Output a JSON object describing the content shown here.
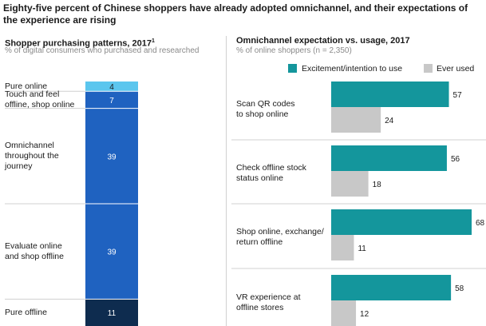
{
  "header": {
    "title": "Eighty-five percent of Chinese shoppers have already adopted omnichannel, and their expectations of the experience are rising"
  },
  "left_panel": {
    "title": "Shopper purchasing patterns, 2017",
    "title_sup": "1",
    "subtitle": "% of digital consumers who purchased and researched"
  },
  "right_panel": {
    "title": "Omnichannel expectation vs. usage, 2017",
    "subtitle": "% of online shoppers (n = 2,350)"
  },
  "colors": {
    "teal": "#14969c",
    "gray": "#c8c8c8",
    "light_blue": "#5bc6ee",
    "blue": "#1f62c0",
    "navy": "#0e2c4f"
  },
  "chart_data": [
    {
      "type": "bar",
      "stacked": true,
      "orientation": "vertical",
      "title": "Shopper purchasing patterns, 2017",
      "subtitle": "% of digital consumers who purchased and researched",
      "categories": [
        "Pure online",
        "Touch and feel offline, shop online",
        "Omnichannel throughout the journey",
        "Evaluate online and shop offline",
        "Pure offline"
      ],
      "labels": [
        "Pure online",
        "Touch and feel\noffline, shop online",
        "Omnichannel\nthroughout the\njourney",
        "Evaluate online\nand shop offline",
        "Pure offline"
      ],
      "values": [
        4,
        7,
        39,
        39,
        11
      ],
      "value_labels": [
        "4",
        "7",
        "39",
        "39",
        "11"
      ]
    },
    {
      "type": "bar",
      "orientation": "horizontal",
      "title": "Omnichannel expectation vs. usage, 2017",
      "subtitle": "% of online shoppers (n = 2,350)",
      "categories": [
        "Scan QR codes to shop online",
        "Check offline stock status online",
        "Shop online, exchange/ return offline",
        "VR experience at offline stores"
      ],
      "labels": [
        "Scan QR codes\nto shop online",
        "Check offline stock\nstatus online",
        "Shop online, exchange/\nreturn offline",
        "VR experience at\noffline stores"
      ],
      "series": [
        {
          "name": "Excitement/intention to use",
          "values": [
            57,
            56,
            68,
            58
          ],
          "value_labels": [
            "57",
            "56",
            "68",
            "58"
          ]
        },
        {
          "name": "Ever used",
          "values": [
            24,
            18,
            11,
            12
          ],
          "value_labels": [
            "24",
            "18",
            "11",
            "12"
          ]
        }
      ],
      "xlim": [
        0,
        70
      ],
      "legend": "top"
    }
  ]
}
